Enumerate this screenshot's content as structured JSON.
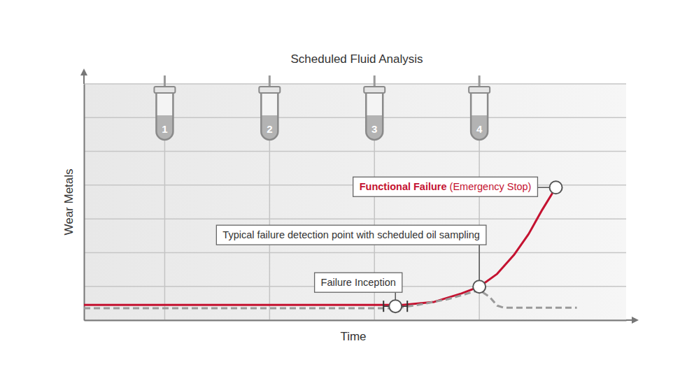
{
  "chart_data": {
    "type": "line",
    "title": "Scheduled Fluid Analysis",
    "x_label": "Time",
    "y_label": "Wear Metals",
    "xlim": [
      0.23,
      5.4
    ],
    "xticks": [
      1,
      2,
      3,
      4
    ],
    "ylim": [
      0,
      7
    ],
    "yticks": [
      0,
      1,
      2,
      3,
      4,
      5,
      6,
      7
    ],
    "grid": true,
    "tick_labels": "x",
    "series": [
      {
        "color": "#c41230",
        "line_style": "solid",
        "x": [
          0.23,
          3.27,
          3.57,
          3.83,
          4.0,
          4.17,
          4.33,
          4.47,
          4.6,
          4.73
        ],
        "values": [
          0.45,
          0.45,
          0.54,
          0.79,
          0.99,
          1.37,
          1.93,
          2.55,
          3.27,
          3.93
        ]
      },
      {
        "color": "#9a9a9a",
        "line_style": "dashed",
        "x": [
          0.23,
          3.2,
          3.43,
          3.7,
          4.0,
          4.1,
          4.17,
          4.23,
          4.93
        ],
        "values": [
          0.35,
          0.35,
          0.46,
          0.62,
          0.89,
          0.68,
          0.43,
          0.37,
          0.37
        ]
      }
    ],
    "annotations": [
      {
        "text": "Failure Inception",
        "x": 3.2,
        "y": 0.41
      },
      {
        "text": "Typical failure detection point with scheduled oil sampling",
        "x": 4.0,
        "y": 0.99
      },
      {
        "text": "Functional Failure",
        "subtext": "(Emergency Stop)",
        "x": 4.73,
        "y": 3.93
      }
    ]
  }
}
